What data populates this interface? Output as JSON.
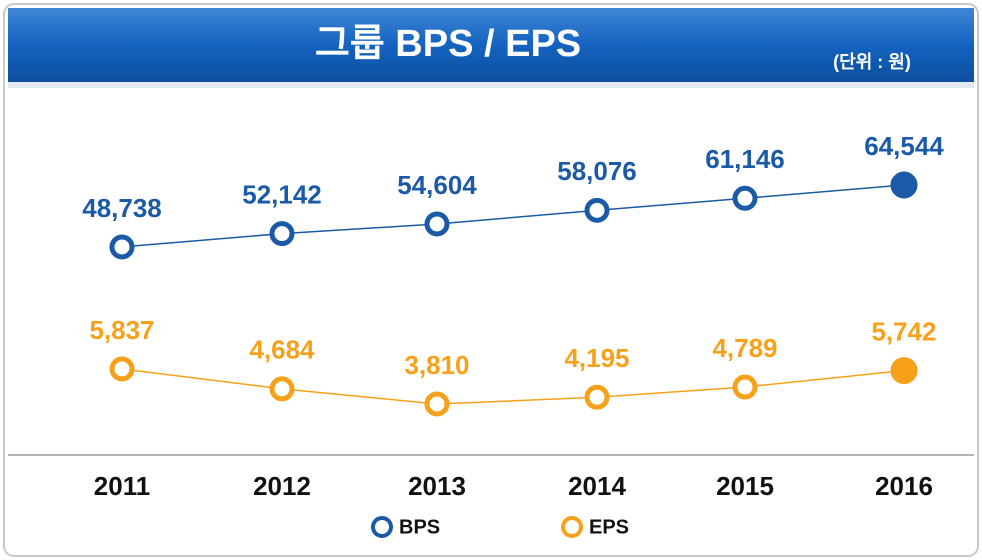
{
  "chart_data": {
    "type": "line",
    "title": "그룹 BPS / EPS",
    "subtitle": "(단위 : 원)",
    "categories": [
      "2011",
      "2012",
      "2013",
      "2014",
      "2015",
      "2016"
    ],
    "series": [
      {
        "name": "BPS",
        "color": "#1b5aa6",
        "values": [
          48738,
          52142,
          54604,
          58076,
          61146,
          64544
        ],
        "value_labels": [
          "48,738",
          "52,142",
          "54,604",
          "58,076",
          "61,146",
          "64,544"
        ]
      },
      {
        "name": "EPS",
        "color": "#f7a11a",
        "axis": "y2",
        "values": [
          5837,
          4684,
          3810,
          4195,
          4789,
          5742
        ],
        "value_labels": [
          "5,837",
          "4,684",
          "3,810",
          "4,195",
          "4,789",
          "5,742"
        ]
      }
    ],
    "ylim": [
      40000,
      70000
    ],
    "y2lim": [
      2000,
      8000
    ]
  }
}
